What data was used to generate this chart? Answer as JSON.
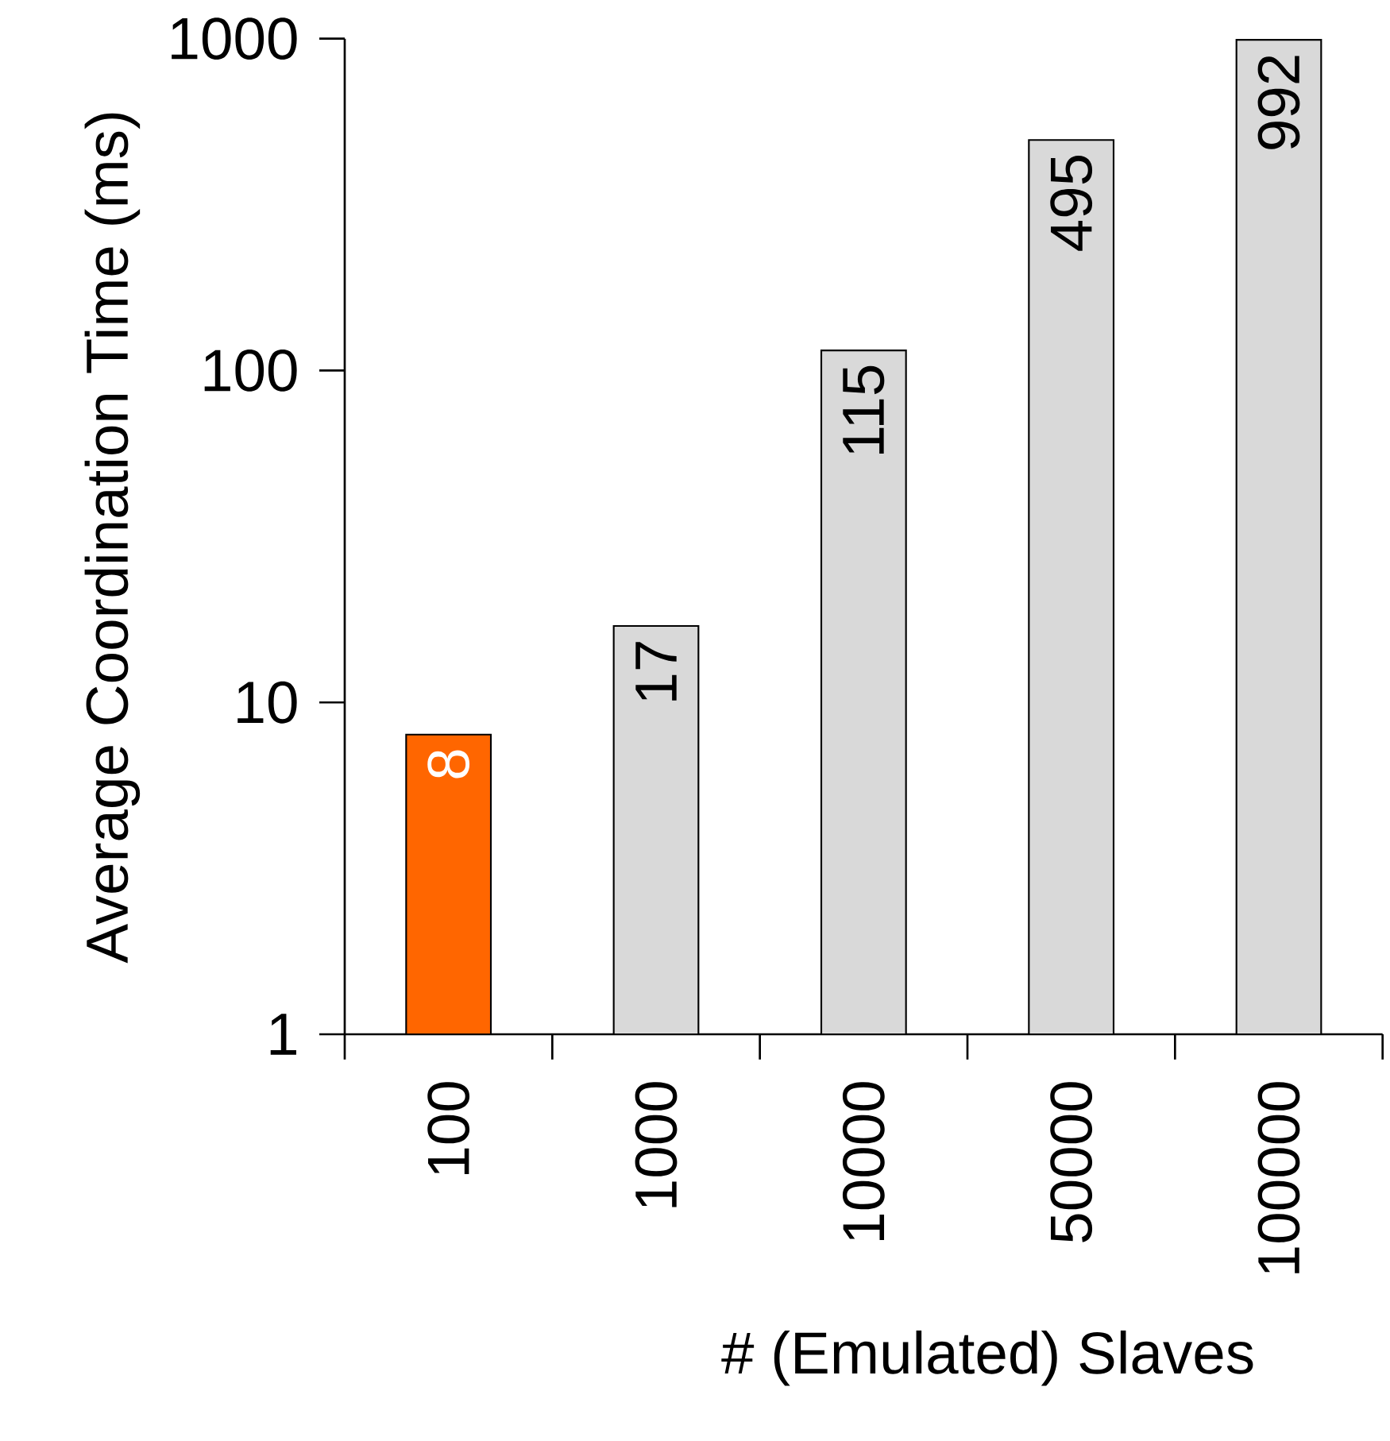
{
  "chart_data": {
    "type": "bar",
    "xlabel": "# (Emulated) Slaves",
    "ylabel": "Average Coordination Time (ms)",
    "categories": [
      "100",
      "1000",
      "10000",
      "50000",
      "100000"
    ],
    "values": [
      8,
      17,
      115,
      495,
      992
    ],
    "colors": [
      "#ff6600",
      "#d9d9d9",
      "#d9d9d9",
      "#d9d9d9",
      "#d9d9d9"
    ],
    "log": true,
    "ylim": [
      1,
      1000
    ],
    "yticks": [
      1,
      10,
      100,
      1000
    ],
    "data_labels": true
  }
}
